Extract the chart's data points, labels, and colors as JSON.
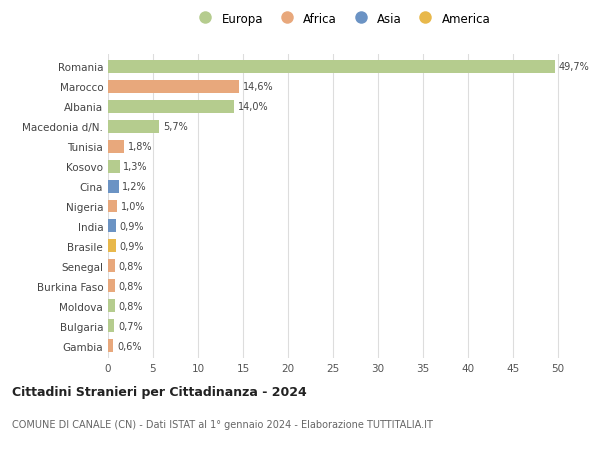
{
  "countries": [
    "Romania",
    "Marocco",
    "Albania",
    "Macedonia d/N.",
    "Tunisia",
    "Kosovo",
    "Cina",
    "Nigeria",
    "India",
    "Brasile",
    "Senegal",
    "Burkina Faso",
    "Moldova",
    "Bulgaria",
    "Gambia"
  ],
  "values": [
    49.7,
    14.6,
    14.0,
    5.7,
    1.8,
    1.3,
    1.2,
    1.0,
    0.9,
    0.9,
    0.8,
    0.8,
    0.8,
    0.7,
    0.6
  ],
  "labels": [
    "49,7%",
    "14,6%",
    "14,0%",
    "5,7%",
    "1,8%",
    "1,3%",
    "1,2%",
    "1,0%",
    "0,9%",
    "0,9%",
    "0,8%",
    "0,8%",
    "0,8%",
    "0,7%",
    "0,6%"
  ],
  "colors": [
    "#b5cc8e",
    "#e8a87c",
    "#b5cc8e",
    "#b5cc8e",
    "#e8a87c",
    "#b5cc8e",
    "#6b93c4",
    "#e8a87c",
    "#6b93c4",
    "#e8b84b",
    "#e8a87c",
    "#e8a87c",
    "#b5cc8e",
    "#b5cc8e",
    "#e8a87c"
  ],
  "legend_labels": [
    "Europa",
    "Africa",
    "Asia",
    "America"
  ],
  "legend_colors": [
    "#b5cc8e",
    "#e8a87c",
    "#6b93c4",
    "#e8b84b"
  ],
  "title": "Cittadini Stranieri per Cittadinanza - 2024",
  "subtitle": "COMUNE DI CANALE (CN) - Dati ISTAT al 1° gennaio 2024 - Elaborazione TUTTITALIA.IT",
  "xlim": [
    0,
    52
  ],
  "xticks": [
    0,
    5,
    10,
    15,
    20,
    25,
    30,
    35,
    40,
    45,
    50
  ],
  "background_color": "#ffffff",
  "grid_color": "#dddddd",
  "bar_height": 0.65
}
